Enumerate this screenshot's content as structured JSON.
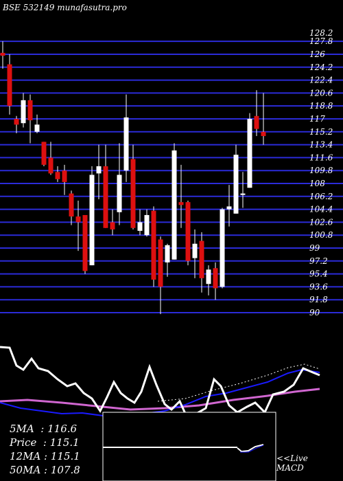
{
  "watermark": "BSE 532149 munafasutra.pro",
  "stats": {
    "ma5_label": "5MA  ",
    "ma5_value": "116.6",
    "price_label": "Price  ",
    "price_value": "115.1",
    "ma12_label": "12MA ",
    "ma12_value": "115.1",
    "ma50_label": "50MA ",
    "ma50_value": "107.8"
  },
  "live_label": "<<Live",
  "macd_label": "MACD",
  "colors": {
    "background": "#000000",
    "grid": "#2b2bd8",
    "up_candle": "#ffffff",
    "down_candle": "#dd1010",
    "indicator_line": "#ffffff",
    "ma_blue": "#1a1aff",
    "ma_magenta": "#d066d0"
  },
  "chart_data": {
    "type": "candlestick",
    "ylim": [
      90,
      128.2
    ],
    "y_ticks": [
      "128.2",
      "127.8",
      "126",
      "124.2",
      "122.4",
      "120.6",
      "118.8",
      "117",
      "115.2",
      "113.4",
      "111.6",
      "109.8",
      "108",
      "106.2",
      "104.4",
      "102.6",
      "100.8",
      "99",
      "97.2",
      "95.4",
      "93.6",
      "91.8",
      "90"
    ],
    "candles": [
      {
        "o": 126.2,
        "h": 127.8,
        "l": 124.0,
        "c": 125.8
      },
      {
        "o": 124.6,
        "h": 126.0,
        "l": 117.6,
        "c": 118.8
      },
      {
        "o": 117.0,
        "h": 117.4,
        "l": 115.0,
        "c": 116.2
      },
      {
        "o": 116.4,
        "h": 120.6,
        "l": 115.8,
        "c": 119.6
      },
      {
        "o": 119.6,
        "h": 120.4,
        "l": 113.6,
        "c": 116.8
      },
      {
        "o": 115.2,
        "h": 117.6,
        "l": 115.0,
        "c": 116.2
      },
      {
        "o": 113.8,
        "h": 113.8,
        "l": 110.4,
        "c": 110.6
      },
      {
        "o": 111.6,
        "h": 113.8,
        "l": 109.2,
        "c": 109.4
      },
      {
        "o": 109.6,
        "h": 110.4,
        "l": 108.2,
        "c": 108.6
      },
      {
        "o": 109.8,
        "h": 110.6,
        "l": 106.4,
        "c": 108.2
      },
      {
        "o": 106.6,
        "h": 107.0,
        "l": 102.2,
        "c": 103.4
      },
      {
        "o": 103.4,
        "h": 105.6,
        "l": 98.6,
        "c": 102.6
      },
      {
        "o": 103.6,
        "h": 103.6,
        "l": 95.4,
        "c": 95.8
      },
      {
        "o": 96.6,
        "h": 110.4,
        "l": 96.6,
        "c": 109.2
      },
      {
        "o": 109.4,
        "h": 113.4,
        "l": 105.8,
        "c": 110.4
      },
      {
        "o": 110.4,
        "h": 113.4,
        "l": 101.8,
        "c": 101.8
      },
      {
        "o": 102.6,
        "h": 104.4,
        "l": 100.8,
        "c": 101.6
      },
      {
        "o": 104.0,
        "h": 113.6,
        "l": 102.2,
        "c": 109.2
      },
      {
        "o": 109.8,
        "h": 120.4,
        "l": 108.2,
        "c": 117.2
      },
      {
        "o": 111.4,
        "h": 113.4,
        "l": 101.6,
        "c": 101.8
      },
      {
        "o": 101.4,
        "h": 104.4,
        "l": 100.8,
        "c": 102.6
      },
      {
        "o": 100.8,
        "h": 104.4,
        "l": 100.6,
        "c": 103.6
      },
      {
        "o": 104.2,
        "h": 104.8,
        "l": 93.6,
        "c": 94.6
      },
      {
        "o": 100.2,
        "h": 100.6,
        "l": 89.8,
        "c": 93.6
      },
      {
        "o": 97.0,
        "h": 99.6,
        "l": 95.0,
        "c": 99.4
      },
      {
        "o": 97.4,
        "h": 113.6,
        "l": 97.4,
        "c": 112.6
      },
      {
        "o": 105.4,
        "h": 110.6,
        "l": 101.8,
        "c": 105.0
      },
      {
        "o": 105.4,
        "h": 105.6,
        "l": 96.6,
        "c": 97.2
      },
      {
        "o": 97.6,
        "h": 101.6,
        "l": 94.8,
        "c": 99.6
      },
      {
        "o": 100.0,
        "h": 101.2,
        "l": 92.8,
        "c": 94.8
      },
      {
        "o": 94.0,
        "h": 96.6,
        "l": 92.4,
        "c": 96.0
      },
      {
        "o": 96.2,
        "h": 97.0,
        "l": 91.8,
        "c": 93.4
      },
      {
        "o": 93.6,
        "h": 104.6,
        "l": 93.4,
        "c": 104.4
      },
      {
        "o": 104.4,
        "h": 107.8,
        "l": 102.0,
        "c": 104.8
      },
      {
        "o": 103.8,
        "h": 113.4,
        "l": 103.8,
        "c": 112.0
      },
      {
        "o": 106.4,
        "h": 109.6,
        "l": 104.6,
        "c": 106.6
      },
      {
        "o": 107.4,
        "h": 117.8,
        "l": 107.4,
        "c": 117.0
      },
      {
        "o": 117.4,
        "h": 121.0,
        "l": 114.6,
        "c": 115.6
      },
      {
        "o": 115.2,
        "h": 120.6,
        "l": 113.4,
        "c": 114.6
      }
    ]
  }
}
